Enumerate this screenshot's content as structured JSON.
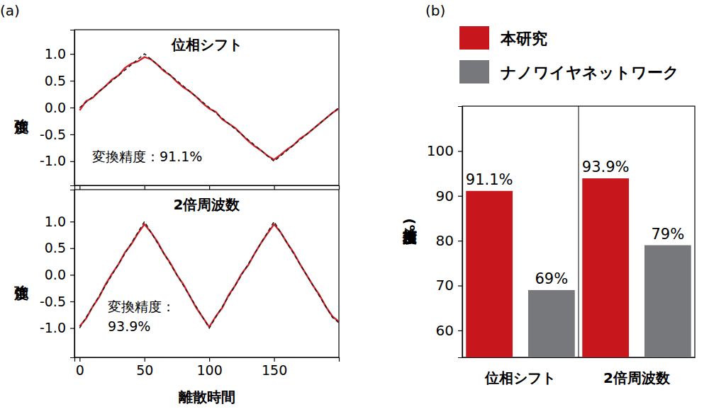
{
  "panel_labels": [
    "(a)",
    "(b)"
  ],
  "chart_data": [
    {
      "type": "line",
      "title": "位相シフト",
      "y_label": "強度",
      "annotations": [
        "変換精度：91.1%"
      ],
      "x": [
        0,
        5,
        10,
        15,
        20,
        25,
        30,
        35,
        40,
        45,
        50,
        55,
        60,
        65,
        70,
        75,
        80,
        85,
        90,
        95,
        100,
        105,
        110,
        115,
        120,
        125,
        130,
        135,
        140,
        145,
        150,
        155,
        160,
        165,
        170,
        175,
        180,
        185,
        190,
        195,
        200
      ],
      "series": [
        {
          "color": "#d42027",
          "line_style": "solid",
          "values": [
            -0.05,
            0.12,
            0.18,
            0.3,
            0.4,
            0.52,
            0.6,
            0.74,
            0.82,
            0.86,
            0.94,
            0.9,
            0.8,
            0.68,
            0.6,
            0.48,
            0.38,
            0.3,
            0.2,
            0.08,
            -0.02,
            -0.08,
            -0.22,
            -0.3,
            -0.38,
            -0.5,
            -0.62,
            -0.72,
            -0.8,
            -0.9,
            -0.97,
            -0.88,
            -0.78,
            -0.7,
            -0.58,
            -0.5,
            -0.4,
            -0.3,
            -0.2,
            -0.1,
            -0.02
          ]
        },
        {
          "color": "#222222",
          "line_style": "dashed",
          "values": [
            0,
            0.1,
            0.2,
            0.3,
            0.4,
            0.5,
            0.6,
            0.7,
            0.8,
            0.9,
            1.0,
            0.9,
            0.8,
            0.7,
            0.6,
            0.5,
            0.4,
            0.3,
            0.2,
            0.1,
            0,
            -0.1,
            -0.2,
            -0.3,
            -0.4,
            -0.5,
            -0.6,
            -0.7,
            -0.8,
            -0.9,
            -1.0,
            -0.9,
            -0.8,
            -0.7,
            -0.6,
            -0.5,
            -0.4,
            -0.3,
            -0.2,
            -0.1,
            0
          ]
        }
      ],
      "xlim": [
        -4,
        200
      ],
      "xticks": [
        0,
        50,
        100,
        150
      ],
      "ylim": [
        -1.45,
        1.45
      ],
      "yticks": [
        {
          "value": 1,
          "label": "1.0"
        },
        {
          "value": 0.5,
          "label": "0.5"
        },
        {
          "value": 0,
          "label": "0.0"
        },
        {
          "value": -0.5,
          "label": "-0.5"
        },
        {
          "value": -1,
          "label": "-1.0"
        }
      ],
      "tick_labels": "y",
      "grid": false
    },
    {
      "type": "line",
      "title": "2倍周波数",
      "y_label": "強度",
      "x_label": "離散時間",
      "annotations": [
        "変換精度：\n93.9%"
      ],
      "x": [
        0,
        5,
        10,
        15,
        20,
        25,
        30,
        35,
        40,
        45,
        50,
        55,
        60,
        65,
        70,
        75,
        80,
        85,
        90,
        95,
        100,
        105,
        110,
        115,
        120,
        125,
        130,
        135,
        140,
        145,
        150,
        155,
        160,
        165,
        170,
        175,
        180,
        185,
        190,
        195,
        200
      ],
      "series": [
        {
          "color": "#d42027",
          "line_style": "solid",
          "values": [
            -0.97,
            -0.82,
            -0.6,
            -0.42,
            -0.18,
            0.02,
            0.2,
            0.42,
            0.58,
            0.78,
            0.95,
            0.8,
            0.62,
            0.4,
            0.22,
            0.0,
            -0.18,
            -0.4,
            -0.62,
            -0.8,
            -0.98,
            -0.78,
            -0.62,
            -0.38,
            -0.2,
            0.02,
            0.18,
            0.4,
            0.6,
            0.78,
            0.95,
            0.8,
            0.6,
            0.42,
            0.2,
            0.0,
            -0.2,
            -0.38,
            -0.6,
            -0.78,
            -0.88
          ]
        },
        {
          "color": "#222222",
          "line_style": "dashed",
          "values": [
            -1,
            -0.8,
            -0.6,
            -0.4,
            -0.2,
            0,
            0.2,
            0.4,
            0.6,
            0.8,
            1.0,
            0.8,
            0.6,
            0.4,
            0.2,
            0,
            -0.2,
            -0.4,
            -0.6,
            -0.8,
            -1.0,
            -0.8,
            -0.6,
            -0.4,
            -0.2,
            0,
            0.2,
            0.4,
            0.6,
            0.8,
            1.0,
            0.8,
            0.6,
            0.4,
            0.2,
            0,
            -0.2,
            -0.4,
            -0.6,
            -0.8,
            -0.9
          ]
        }
      ],
      "xlim": [
        -4,
        200
      ],
      "xticks": [
        0,
        50,
        100,
        150
      ],
      "ylim": [
        -1.55,
        1.6
      ],
      "yticks": [
        {
          "value": 1,
          "label": "1.0"
        },
        {
          "value": 0.5,
          "label": "0.5"
        },
        {
          "value": 0,
          "label": "0.0"
        },
        {
          "value": -0.5,
          "label": "-0.5"
        },
        {
          "value": -1,
          "label": "-1.0"
        }
      ],
      "grid": false
    },
    {
      "type": "bar",
      "y_label": "変換精度(%)",
      "categories": [
        "位相シフト",
        "2倍周波数"
      ],
      "series": [
        {
          "name": "本研究",
          "color": "#c8161d",
          "values": [
            91.1,
            93.9
          ],
          "value_labels": [
            "91.1%",
            "93.9%"
          ]
        },
        {
          "name": "ナノワイヤネットワーク",
          "color": "#77787b",
          "values": [
            69,
            79
          ],
          "value_labels": [
            "69%",
            "79%"
          ]
        }
      ],
      "ylim": [
        54,
        110
      ],
      "yticks": [
        60,
        70,
        80,
        90,
        100
      ],
      "legend": "top",
      "data_labels": true,
      "grid": false
    }
  ]
}
